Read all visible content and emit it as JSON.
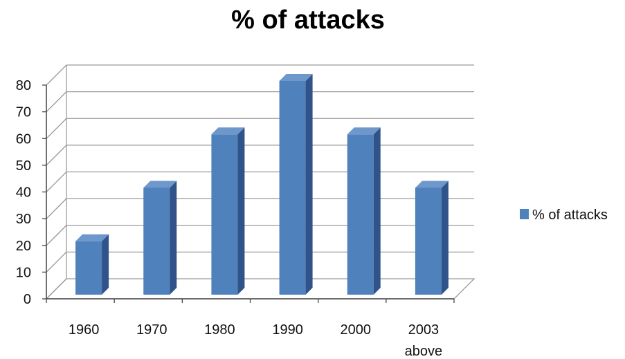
{
  "chart_data": {
    "type": "bar",
    "title": "% of attacks",
    "categories": [
      "1960",
      "1970",
      "1980",
      "1990",
      "2000",
      "2003 above"
    ],
    "series": [
      {
        "name": "% of attacks",
        "values": [
          20,
          40,
          60,
          80,
          60,
          40
        ],
        "color": "#4F81BD"
      }
    ],
    "xlabel": "",
    "ylabel": "",
    "ylim": [
      0,
      80
    ],
    "yticks": [
      0,
      10,
      20,
      30,
      40,
      50,
      60,
      70,
      80
    ],
    "grid": true,
    "legend_position": "right",
    "style": "3d-column"
  }
}
